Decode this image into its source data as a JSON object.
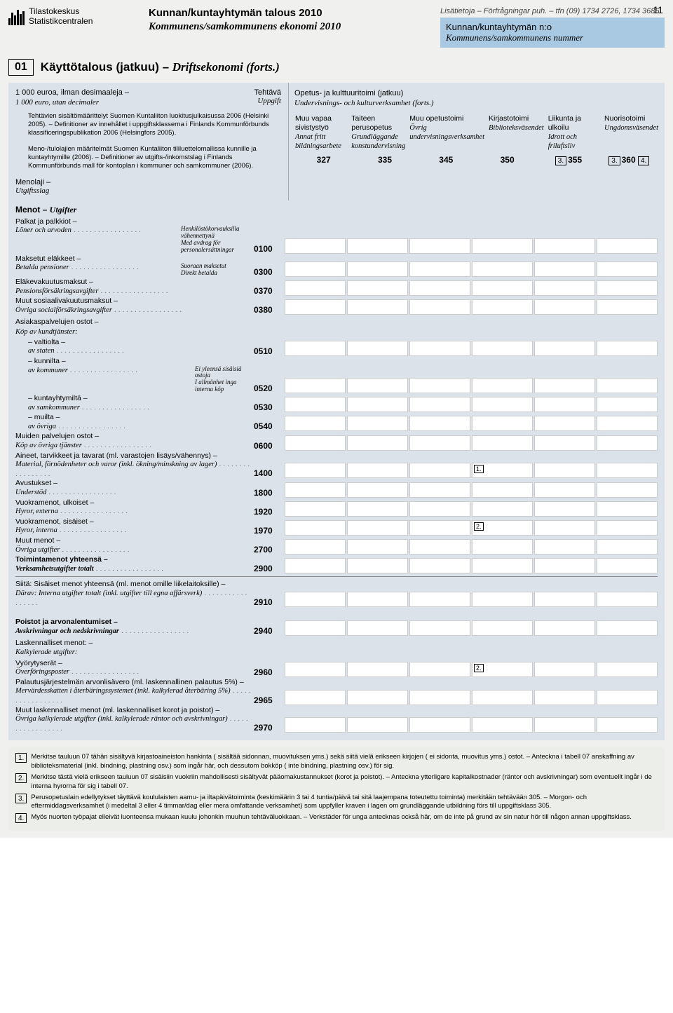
{
  "page_number": "11",
  "logo": {
    "name_fi": "Tilastokeskus",
    "name_sv": "Statistikcentralen"
  },
  "title_fi": "Kunnan/kuntayhtymän talous 2010",
  "title_sv": "Kommunens/samkommunens ekonomi 2010",
  "info_line": "Lisätietoja – Förfrågningar puh. – tfn (09) 1734 2726, 1734 3685",
  "info_box_fi": "Kunnan/kuntayhtymän n:o",
  "info_box_sv": "Kommunens/samkommunens nummer",
  "section_num": "01",
  "section_title_fi": "Käyttötalous (jatkuu) –",
  "section_title_sv": "Driftsekonomi (forts.)",
  "unit_fi": "1 000 euroa, ilman desimaaleja –",
  "unit_sv": "1 000 euro, utan decimaler",
  "task_fi": "Tehtävä",
  "task_sv": "Uppgift",
  "desc1": "Tehtävien sisältömäärittelyt Suomen Kuntaliiton luokitusjulkaisussa 2006 (Helsinki 2005). – Definitioner av innehållet i uppgiftsklasserna i Finlands Kommunförbunds klassificeringspublikation 2006 (Helsingfors 2005).",
  "desc2": "Meno-/tulolajien määritelmät Suomen Kuntaliiton tililuettelomallissa kunnille ja kuntayhtymille (2006). – Definitioner av utgifts-/inkomstslag i Finlands Kommunförbunds mall för kontoplan i kommuner och samkommuner (2006).",
  "axis_fi": "Menolaji –",
  "axis_sv": "Utgiftsslag",
  "top_heading_fi": "Opetus- ja kulttuuritoimi (jatkuu)",
  "top_heading_sv": "Undervisnings- och kulturverksamhet (forts.)",
  "columns": [
    {
      "label": "Muu vapaa sivistystyö\nAnnat fritt bildningsarbete",
      "code": "327",
      "pre": ""
    },
    {
      "label": "Taiteen perusopetus\nGrundläggande konstundervisning",
      "code": "335",
      "pre": ""
    },
    {
      "label": "Muu opetustoimi\nÖvrig undervisningsverksamhet",
      "code": "345",
      "pre": ""
    },
    {
      "label": "Kirjastotoimi\nBiblioteksväsendet",
      "code": "350",
      "pre": ""
    },
    {
      "label": "Liikunta ja ulkoilu\nIdrott och friluftsliv",
      "code": "355",
      "pre": "3."
    },
    {
      "label": "Nuorisotoimi\nUngdomsväsendet",
      "code": "360",
      "pre": "3.",
      "post": "4."
    }
  ],
  "group_header": "Menot – Utgifter",
  "note_palkat_fi": "Henkilöstökorvauksilla vähennettynä",
  "note_palkat_sv": "Med avdrag för personalersättningar",
  "note_elak_fi": "Suoraan maksetut",
  "note_elak_sv": "Direkt betalda",
  "note_ostot": "Ei yleensä sisäisiä ostoja\nI allmänhet inga interna köp",
  "rows": [
    {
      "label_fi": "Palkat ja palkkiot –",
      "label_sv": "Löner och arvoden",
      "code": "0100",
      "note": "palkat"
    },
    {
      "label_fi": "Maksetut eläkkeet –",
      "label_sv": "Betalda pensioner",
      "code": "0300",
      "note": "elak"
    },
    {
      "label_fi": "Eläkevakuutusmaksut –",
      "label_sv": "Pensionsförsäkringsavgifter",
      "code": "0370"
    },
    {
      "label_fi": "Muut sosiaalivakuutusmaksut –",
      "label_sv": "Övriga socialförsäkringsavgifter",
      "code": "0380"
    },
    {
      "header": "Asiakaspalvelujen ostot –\nKöp av kundtjänster:"
    },
    {
      "label_fi": "– valtiolta –",
      "label_sv": "av staten",
      "code": "0510",
      "indent": true
    },
    {
      "label_fi": "– kunnilta –",
      "label_sv": "av kommuner",
      "code": "0520",
      "indent": true,
      "note": "ostot"
    },
    {
      "label_fi": "– kuntayhtymiltä –",
      "label_sv": "av samkommuner",
      "code": "0530",
      "indent": true
    },
    {
      "label_fi": "– muilta –",
      "label_sv": "av övriga",
      "code": "0540",
      "indent": true
    },
    {
      "label_fi": "Muiden palvelujen ostot –",
      "label_sv": "Köp av övriga tjänster",
      "code": "0600"
    },
    {
      "label_fi": "Aineet, tarvikkeet ja tavarat (ml. varastojen lisäys/vähennys) –",
      "label_sv": "Material, förnödenheter och varor (inkl. ökning/minskning av lager)",
      "code": "1400",
      "mark": {
        "col": 3,
        "n": "1."
      }
    },
    {
      "label_fi": "Avustukset –",
      "label_sv": "Understöd",
      "code": "1800"
    },
    {
      "label_fi": "Vuokramenot, ulkoiset –",
      "label_sv": "Hyror, externa",
      "code": "1920"
    },
    {
      "label_fi": "Vuokramenot, sisäiset –",
      "label_sv": "Hyror, interna",
      "code": "1970",
      "mark": {
        "col": 3,
        "n": "2."
      }
    },
    {
      "label_fi": "Muut menot –",
      "label_sv": "Övriga utgifter",
      "code": "2700"
    },
    {
      "label_fi": "Toimintamenot yhteensä –",
      "label_sv": "Verksamhetsutgifter totalt",
      "code": "2900",
      "bold": true
    },
    {
      "divider": true
    },
    {
      "label_fi": "Siitä: Sisäiset menot yhteensä (ml. menot omille liikelaitoksille) –",
      "label_sv": "Därav: Interna utgifter totalt (inkl. utgifter till egna affärsverk)",
      "code": "2910"
    }
  ],
  "rows2": [
    {
      "label_fi": "Poistot ja arvonalentumiset –",
      "label_sv": "Avskrivningar och nedskrivningar",
      "code": "2940",
      "bold": true
    },
    {
      "header": "Laskennalliset menot: –\nKalkylerade utgifter:"
    },
    {
      "label_fi": "Vyörytyserät –",
      "label_sv": "Överföringsposter",
      "code": "2960",
      "mark": {
        "col": 3,
        "n": "2."
      }
    },
    {
      "label_fi": "Palautusjärjestelmän arvonlisävero (ml. laskennallinen palautus 5%) –",
      "label_sv": "Mervärdesskatten i återbäringssystemet (inkl. kalkylerad återbäring 5%)",
      "code": "2965"
    },
    {
      "label_fi": "Muut laskennalliset menot (ml. laskennalliset korot ja poistot) –",
      "label_sv": "Övriga kalkylerade utgifter (inkl. kalkylerade räntor och avskrivningar)",
      "code": "2970"
    }
  ],
  "footnotes": [
    {
      "n": "1.",
      "text": "Merkitse tauluun 07 tähän sisältyvä kirjastoaineiston hankinta ( sisältää sidonnan, muovituksen yms.) sekä siitä vielä erikseen kirjojen ( ei sidonta, muovitus yms.) ostot. – Anteckna i tabell 07 anskaffning av biblioteksmaterial (inkl. bindning, plastning osv.) som ingår här, och dessutom bokköp ( inte bindning, plastning osv.) för sig."
    },
    {
      "n": "2.",
      "text": "Merkitse tästä vielä erikseen tauluun 07 sisäisiin vuokriin mahdollisesti sisältyvät pääomakustannukset (korot ja poistot). – Anteckna ytterligare kapitalkostnader (räntor och avskrivningar) som eventuellt ingår i de interna hyrorna för sig i tabell 07."
    },
    {
      "n": "3.",
      "text": "Perusopetuslain edellytykset täyttävä koululaisten aamu- ja iltapäivätoiminta (keskimäärin 3 tai 4 tuntia/päivä tai sitä laajempana toteutettu toiminta) merkitään tehtävään 305. – Morgon- och eftermiddagsverksamhet (i medeltal 3 eller 4 timmar/dag eller mera omfattande verksamhet) som uppfyller kraven i lagen om grundläggande utbildning förs till uppgiftsklass 305."
    },
    {
      "n": "4.",
      "text": "Myös nuorten työpajat elleivät luonteensa mukaan kuulu johonkin muuhun tehtäväluokkaan. – Verkstäder för unga antecknas också här, om de inte på grund av sin natur hör till någon annan uppgiftsklass."
    }
  ],
  "colors": {
    "header_blue": "#a9c9e2",
    "panel": "#dbe2e9",
    "page_bg": "#f0f0ee"
  }
}
